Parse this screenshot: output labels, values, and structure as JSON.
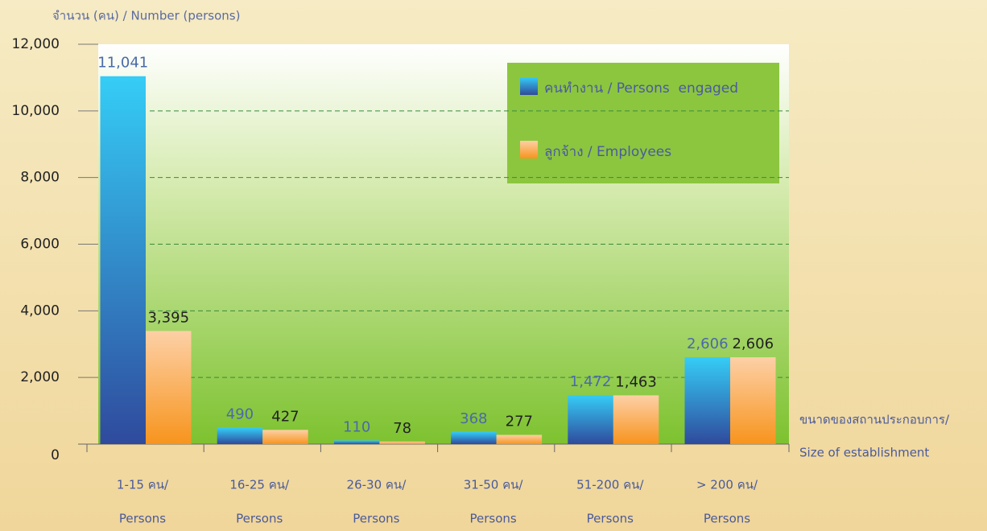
{
  "chart_data": {
    "type": "bar",
    "y_axis_label": "จำนวน (คน) / Number (persons)",
    "x_axis_label": [
      "ขนาดของสถานประกอบการ/",
      "Size of establishment"
    ],
    "categories": [
      [
        "1-15 คน/",
        "Persons"
      ],
      [
        "16-25 คน/",
        "Persons"
      ],
      [
        "26-30 คน/",
        "Persons"
      ],
      [
        "31-50 คน/",
        "Persons"
      ],
      [
        "51-200 คน/",
        "Persons"
      ],
      [
        "> 200 คน/",
        "Persons"
      ]
    ],
    "series": [
      {
        "name": "คนทำงาน / Persons  engaged",
        "color": [
          "#35cdf6",
          "#2f4a9c"
        ],
        "values": [
          11041,
          490,
          110,
          368,
          1472,
          2606
        ],
        "value_labels": [
          "11,041",
          "490",
          "110",
          "368",
          "1,472",
          "2,606"
        ]
      },
      {
        "name": "ลูกจ้าง / Employees",
        "color": [
          "#fdd0a6",
          "#f7941d"
        ],
        "values": [
          3395,
          427,
          78,
          277,
          1463,
          2606
        ],
        "value_labels": [
          "3,395",
          "427",
          "78",
          "277",
          "1,463",
          "2,606"
        ]
      }
    ],
    "ylim": [
      0,
      12000
    ],
    "yticks": [
      0,
      {
        "value": 2000,
        "label": "2,000"
      },
      {
        "value": 4000,
        "label": "4,000"
      },
      {
        "value": 6000,
        "label": "6,000"
      },
      {
        "value": 8000,
        "label": "8,000"
      },
      {
        "value": 10000,
        "label": "10,000"
      },
      {
        "value": 12000,
        "label": "12,000"
      }
    ],
    "grid": true
  }
}
